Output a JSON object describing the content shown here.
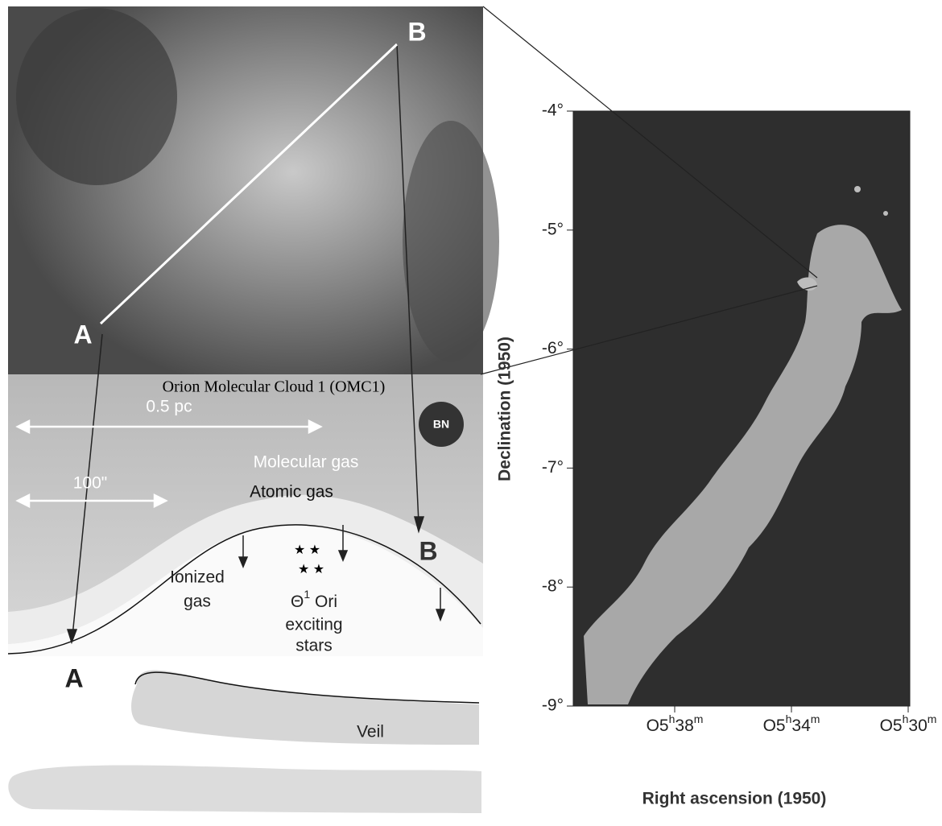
{
  "left_panel": {
    "image_label_b": "B",
    "image_label_a": "A",
    "title": "Orion Molecular Cloud 1 (OMC1)",
    "scale_pc": "0.5 pc",
    "bn": "BN",
    "molecular_gas": "Molecular gas",
    "scale_arcsec": "100\"",
    "atomic_gas": "Atomic gas",
    "section_label_b": "B",
    "ionized_gas": [
      "Ionized",
      "gas"
    ],
    "stars_label": {
      "symbol": "Θ",
      "sup": "1",
      "rest": " Ori",
      "lines": [
        "exciting",
        "stars"
      ]
    },
    "section_label_a": "A",
    "veil": "Veil"
  },
  "right_panel": {
    "y_axis_label": "Declination (1950)",
    "x_axis_label": "Right ascension (1950)",
    "y_ticks": [
      "-4°",
      "-5°",
      "-6°",
      "-7°",
      "-8°",
      "-9°"
    ],
    "x_ticks": [
      {
        "base": "O5",
        "h": "h",
        "num": "38",
        "m": "m"
      },
      {
        "base": "O5",
        "h": "h",
        "num": "34",
        "m": "m"
      },
      {
        "base": "O5",
        "h": "h",
        "num": "30",
        "m": "m"
      }
    ]
  }
}
